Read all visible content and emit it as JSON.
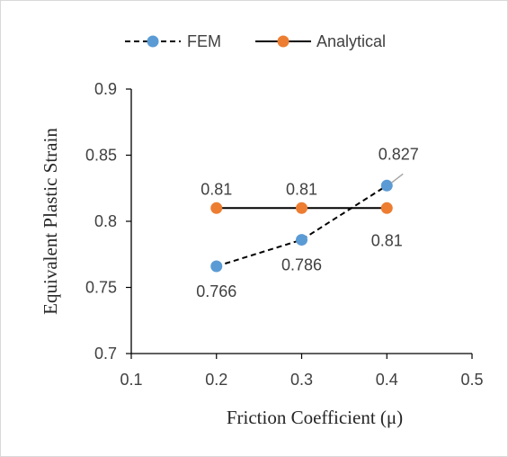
{
  "chart_data": {
    "type": "line",
    "title": "",
    "xlabel": "Friction Coefficient (μ)",
    "ylabel": "Equivalent Plastic Strain",
    "xlim": [
      0.1,
      0.5
    ],
    "ylim": [
      0.7,
      0.9
    ],
    "x_ticks": [
      "0.1",
      "0.2",
      "0.3",
      "0.4",
      "0.5"
    ],
    "y_ticks": [
      "0.7",
      "0.75",
      "0.8",
      "0.85",
      "0.9"
    ],
    "grid": false,
    "legend_position": "top",
    "series": [
      {
        "name": "FEM",
        "x": [
          0.2,
          0.3,
          0.4
        ],
        "values": [
          0.766,
          0.786,
          0.827
        ],
        "labels": [
          "0.766",
          "0.786",
          "0.827"
        ],
        "line_style": "dashed",
        "line_color": "#000000",
        "marker_color": "#5b9bd5"
      },
      {
        "name": "Analytical",
        "x": [
          0.2,
          0.3,
          0.4
        ],
        "values": [
          0.81,
          0.81,
          0.81
        ],
        "labels": [
          "0.81",
          "0.81",
          "0.81"
        ],
        "line_style": "solid",
        "line_color": "#000000",
        "marker_color": "#ed7d31"
      }
    ]
  }
}
